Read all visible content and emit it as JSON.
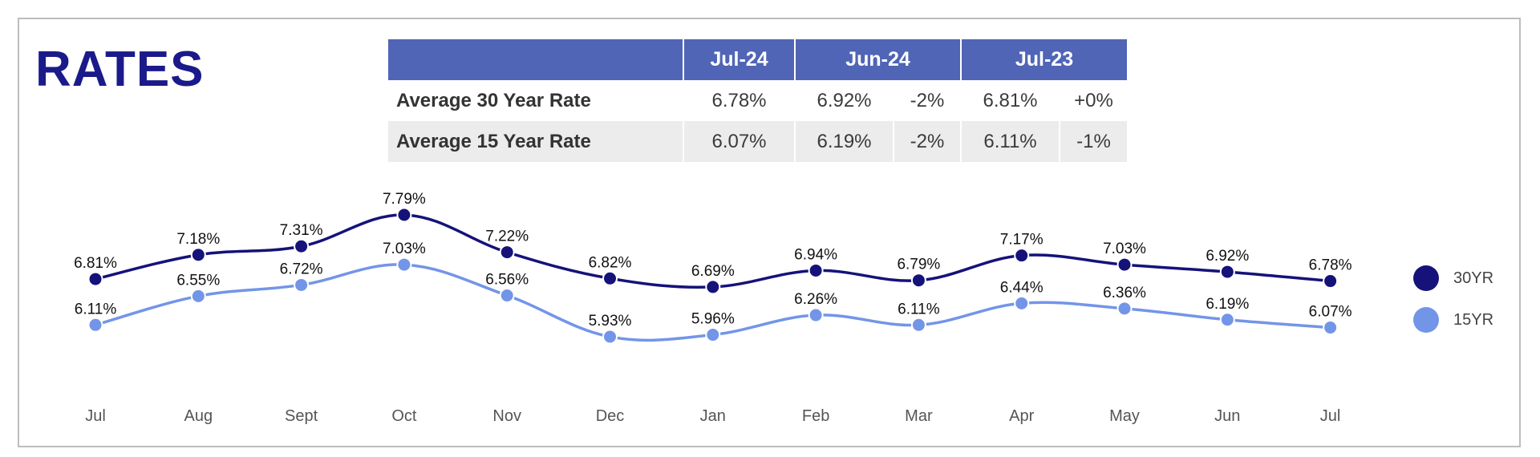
{
  "title": "RATES",
  "table": {
    "headers": [
      "Jul-24",
      "Jun-24",
      "Jul-23"
    ],
    "rows": [
      {
        "label": "Average 30 Year Rate",
        "cur": "6.78%",
        "prev": "6.92%",
        "prev_chg": "-2%",
        "yr": "6.81%",
        "yr_chg": "+0%"
      },
      {
        "label": "Average 15 Year Rate",
        "cur": "6.07%",
        "prev": "6.19%",
        "prev_chg": "-2%",
        "yr": "6.11%",
        "yr_chg": "-1%"
      }
    ]
  },
  "chart_data": {
    "type": "line",
    "categories": [
      "Jul",
      "Aug",
      "Sept",
      "Oct",
      "Nov",
      "Dec",
      "Jan",
      "Feb",
      "Mar",
      "Apr",
      "May",
      "Jun",
      "Jul"
    ],
    "series": [
      {
        "name": "30YR",
        "color": "#15127a",
        "values": [
          6.81,
          7.18,
          7.31,
          7.79,
          7.22,
          6.82,
          6.69,
          6.94,
          6.79,
          7.17,
          7.03,
          6.92,
          6.78
        ],
        "labels": [
          "6.81%",
          "7.18%",
          "7.31%",
          "7.79%",
          "7.22%",
          "6.82%",
          "6.69%",
          "6.94%",
          "6.79%",
          "7.17%",
          "7.03%",
          "6.92%",
          "6.78%"
        ]
      },
      {
        "name": "15YR",
        "color": "#7395e8",
        "values": [
          6.11,
          6.55,
          6.72,
          7.03,
          6.56,
          5.93,
          5.96,
          6.26,
          6.11,
          6.44,
          6.36,
          6.19,
          6.07
        ],
        "labels": [
          "6.11%",
          "6.55%",
          "6.72%",
          "7.03%",
          "6.56%",
          "5.93%",
          "5.96%",
          "6.26%",
          "6.11%",
          "6.44%",
          "6.36%",
          "6.19%",
          "6.07%"
        ]
      }
    ],
    "legend": "right",
    "grid": false,
    "y_axis_visible": false
  }
}
